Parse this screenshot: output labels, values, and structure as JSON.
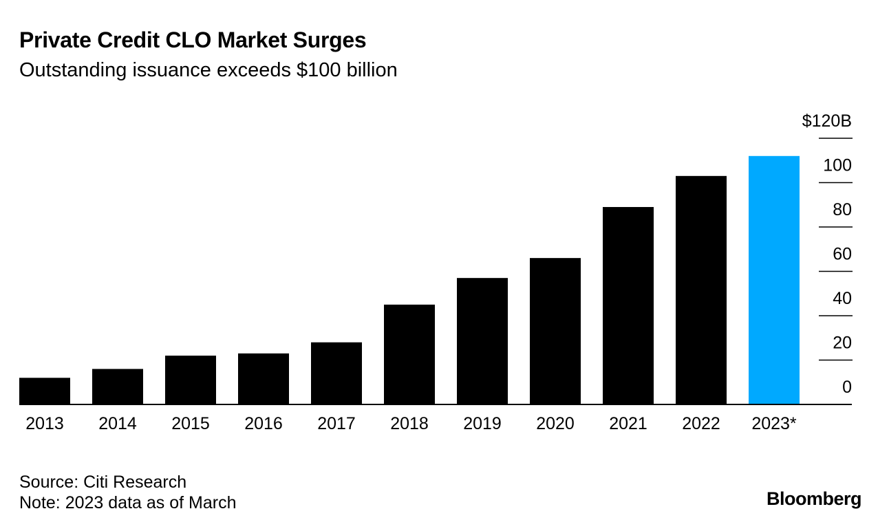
{
  "header": {
    "title": "Private Credit CLO Market Surges",
    "subtitle": "Outstanding issuance exceeds $100 billion"
  },
  "footer": {
    "source": "Source: Citi Research",
    "note": "Note: 2023 data as of March"
  },
  "brand": {
    "logo_text": "Bloomberg"
  },
  "chart_data": {
    "type": "bar",
    "title": "Private Credit CLO Market Surges",
    "subtitle": "Outstanding issuance exceeds $100 billion",
    "xlabel": "",
    "ylabel": "",
    "categories": [
      "2013",
      "2014",
      "2015",
      "2016",
      "2017",
      "2018",
      "2019",
      "2020",
      "2021",
      "2022",
      "2023*"
    ],
    "values": [
      12,
      16,
      22,
      23,
      28,
      45,
      57,
      66,
      89,
      103,
      112
    ],
    "highlight_index": 10,
    "colors": {
      "bar": "#000000",
      "highlight": "#00a9ff",
      "axis": "#000000"
    },
    "ylim": [
      0,
      120
    ],
    "yticks": [
      {
        "value": 0,
        "label": "0"
      },
      {
        "value": 20,
        "label": "20"
      },
      {
        "value": 40,
        "label": "40"
      },
      {
        "value": 60,
        "label": "60"
      },
      {
        "value": 80,
        "label": "80"
      },
      {
        "value": 100,
        "label": "100"
      },
      {
        "value": 120,
        "label": "$120B"
      }
    ],
    "y_axis_side": "right",
    "grid": false,
    "legend": "none"
  }
}
